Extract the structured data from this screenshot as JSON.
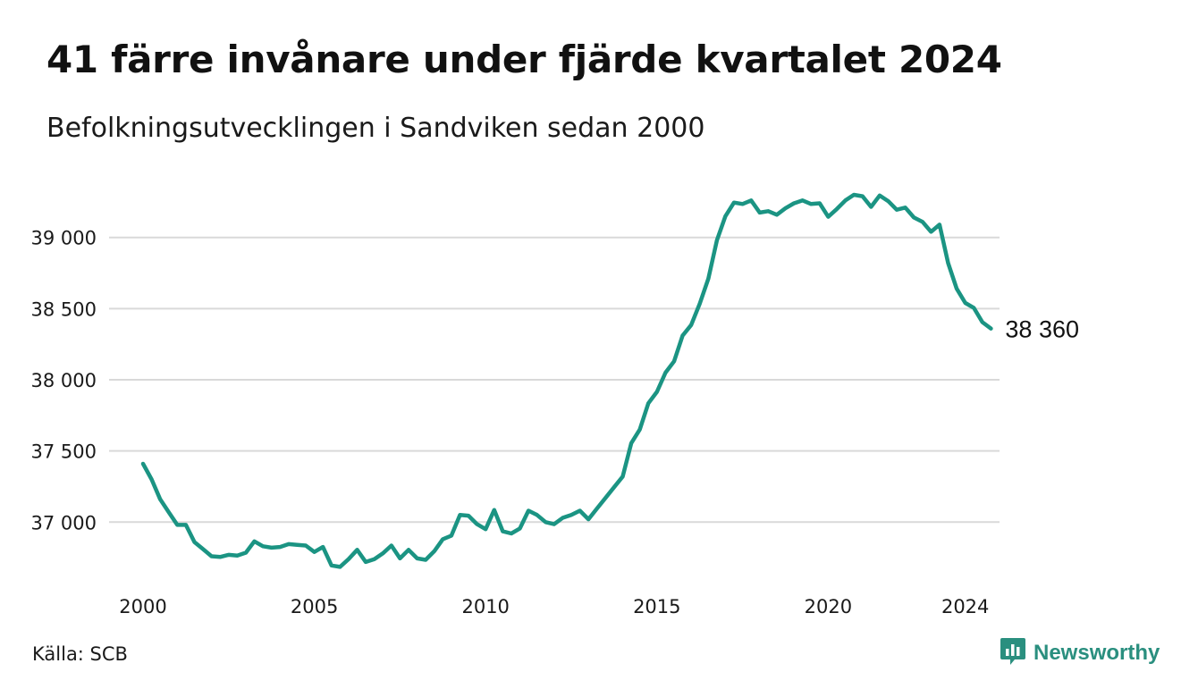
{
  "title": "41 färre invånare under fjärde kvartalet 2024",
  "subtitle": "Befolkningsutvecklingen i Sandviken sedan 2000",
  "source": "Källa: SCB",
  "brand": {
    "name": "Newsworthy",
    "icon": "bar-chart-speech-bubble-icon"
  },
  "colors": {
    "line": "#1b9483",
    "grid": "#d9d9d9",
    "brand": "#2a8f7f"
  },
  "chart_data": {
    "type": "line",
    "title": "41 färre invånare under fjärde kvartalet 2024",
    "subtitle": "Befolkningsutvecklingen i Sandviken sedan 2000",
    "x_ticks": [
      2000,
      2005,
      2010,
      2015,
      2020,
      2024
    ],
    "x_tick_labels": [
      "2000",
      "2005",
      "2010",
      "2015",
      "2020",
      "2024"
    ],
    "y_ticks": [
      37000,
      37500,
      38000,
      38500,
      39000
    ],
    "y_tick_labels": [
      "37 000",
      "37 500",
      "38 000",
      "38 500",
      "39 000"
    ],
    "xlim": [
      2000,
      2025
    ],
    "ylim": [
      36650,
      39350
    ],
    "grid": "horizontal",
    "end_label": "38 360",
    "series": [
      {
        "x": [
          2000.0,
          2000.25,
          2000.5,
          2000.75,
          2001.0,
          2001.25,
          2001.5,
          2001.75,
          2002.0,
          2002.25,
          2002.5,
          2002.75,
          2003.0,
          2003.25,
          2003.5,
          2003.75,
          2004.0,
          2004.25,
          2004.5,
          2004.75,
          2005.0,
          2005.25,
          2005.5,
          2005.75,
          2006.0,
          2006.25,
          2006.5,
          2006.75,
          2007.0,
          2007.25,
          2007.5,
          2007.75,
          2008.0,
          2008.25,
          2008.5,
          2008.75,
          2009.0,
          2009.25,
          2009.5,
          2009.75,
          2010.0,
          2010.25,
          2010.5,
          2010.75,
          2011.0,
          2011.25,
          2011.5,
          2011.75,
          2012.0,
          2012.25,
          2012.5,
          2012.75,
          2013.0,
          2013.25,
          2013.5,
          2013.75,
          2014.0,
          2014.25,
          2014.5,
          2014.75,
          2015.0,
          2015.25,
          2015.5,
          2015.75,
          2016.0,
          2016.25,
          2016.5,
          2016.75,
          2017.0,
          2017.25,
          2017.5,
          2017.75,
          2018.0,
          2018.25,
          2018.5,
          2018.75,
          2019.0,
          2019.25,
          2019.5,
          2019.75,
          2020.0,
          2020.25,
          2020.5,
          2020.75,
          2021.0,
          2021.25,
          2021.5,
          2021.75,
          2022.0,
          2022.25,
          2022.5,
          2022.75,
          2023.0,
          2023.25,
          2023.5,
          2023.75,
          2024.0,
          2024.25,
          2024.5,
          2024.75
        ],
        "values": [
          37410,
          37300,
          37160,
          37070,
          36980,
          36980,
          36860,
          36810,
          36760,
          36755,
          36770,
          36765,
          36785,
          36865,
          36830,
          36820,
          36825,
          36845,
          36840,
          36835,
          36790,
          36825,
          36695,
          36685,
          36740,
          36805,
          36720,
          36740,
          36780,
          36835,
          36745,
          36805,
          36745,
          36735,
          36795,
          36880,
          36905,
          37050,
          37045,
          36985,
          36950,
          37085,
          36935,
          36920,
          36955,
          37080,
          37050,
          37000,
          36985,
          37030,
          37050,
          37080,
          37020,
          37095,
          37170,
          37245,
          37320,
          37555,
          37650,
          37835,
          37915,
          38050,
          38130,
          38310,
          38385,
          38535,
          38710,
          38980,
          39150,
          39245,
          39235,
          39260,
          39175,
          39185,
          39160,
          39205,
          39240,
          39260,
          39235,
          39240,
          39145,
          39200,
          39260,
          39300,
          39290,
          39215,
          39295,
          39255,
          39195,
          39210,
          39140,
          39110,
          39040,
          39090,
          38820,
          38640,
          38540,
          38505,
          38405,
          38360
        ]
      }
    ]
  }
}
